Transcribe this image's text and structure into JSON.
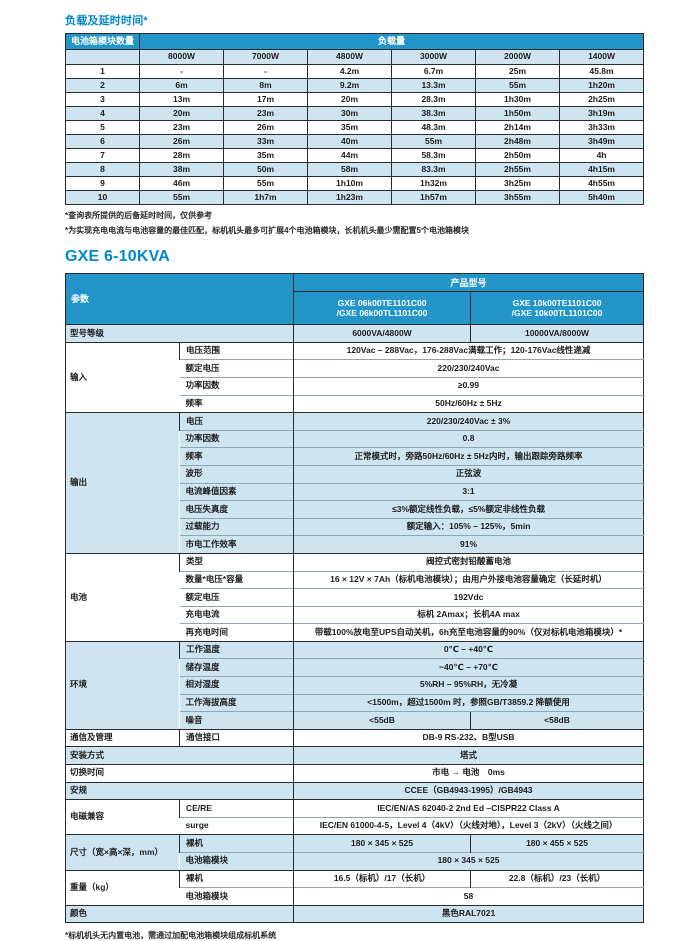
{
  "colors": {
    "header_blue": "#2395c9",
    "row_light_blue": "#cfe4f1",
    "title_blue": "#0087cb",
    "border_dark": "#2b2b2b"
  },
  "load_section": {
    "title": "负载及延时时间*",
    "table": {
      "corner_header": "电池箱模块数量",
      "span_header": "负载量",
      "columns": [
        "8000W",
        "7000W",
        "4800W",
        "3000W",
        "2000W",
        "1400W"
      ],
      "rows": [
        {
          "modules": "1",
          "values": [
            "-",
            "-",
            "4.2m",
            "6.7m",
            "25m",
            "45.8m"
          ]
        },
        {
          "modules": "2",
          "values": [
            "6m",
            "8m",
            "9.2m",
            "13.3m",
            "55m",
            "1h20m"
          ]
        },
        {
          "modules": "3",
          "values": [
            "13m",
            "17m",
            "20m",
            "28.3m",
            "1h30m",
            "2h25m"
          ]
        },
        {
          "modules": "4",
          "values": [
            "20m",
            "23m",
            "30m",
            "38.3m",
            "1h50m",
            "3h19m"
          ]
        },
        {
          "modules": "5",
          "values": [
            "23m",
            "26m",
            "35m",
            "48.3m",
            "2h14m",
            "3h33m"
          ]
        },
        {
          "modules": "6",
          "values": [
            "26m",
            "33m",
            "40m",
            "55m",
            "2h48m",
            "3h49m"
          ]
        },
        {
          "modules": "7",
          "values": [
            "28m",
            "35m",
            "44m",
            "58.3m",
            "2h50m",
            "4h"
          ]
        },
        {
          "modules": "8",
          "values": [
            "38m",
            "50m",
            "58m",
            "83.3m",
            "2h55m",
            "4h15m"
          ]
        },
        {
          "modules": "9",
          "values": [
            "46m",
            "55m",
            "1h10m",
            "1h32m",
            "3h25m",
            "4h55m"
          ]
        },
        {
          "modules": "10",
          "values": [
            "55m",
            "1h7m",
            "1h23m",
            "1h57m",
            "3h55m",
            "5h40m"
          ]
        }
      ]
    },
    "footnotes": [
      "*查询表所提供的后备延时时间，仅供参考",
      "*为实现充电电流与电池容量的最佳匹配，标机机头最多可扩展4个电池箱模块，长机机头最少需配置5个电池箱模块"
    ]
  },
  "spec_section": {
    "title": "GXE 6-10KVA",
    "header": {
      "param_label": "参数",
      "product_label": "产品型号",
      "model1": [
        "GXE 06k00TE1101C00",
        "/GXE 06k00TL1101C00"
      ],
      "model2": [
        "GXE 10k00TE1101C00",
        "/GXE 10k00TL1101C00"
      ]
    },
    "groups": [
      {
        "label": "型号等级",
        "shade": true,
        "rows": [
          {
            "param": null,
            "values": [
              "6000VA/4800W",
              "10000VA/8000W"
            ]
          }
        ]
      },
      {
        "label": "输入",
        "shade": false,
        "rows": [
          {
            "param": "电压范围",
            "values": [
              "120Vac – 288Vac，176-288Vac满载工作；120-176Vac线性递减"
            ]
          },
          {
            "param": "额定电压",
            "values": [
              "220/230/240Vac"
            ]
          },
          {
            "param": "功率因数",
            "values": [
              "≥0.99"
            ]
          },
          {
            "param": "频率",
            "values": [
              "50Hz/60Hz ± 5Hz"
            ]
          }
        ]
      },
      {
        "label": "输出",
        "shade": true,
        "rows": [
          {
            "param": "电压",
            "values": [
              "220/230/240Vac ± 3%"
            ]
          },
          {
            "param": "功率因数",
            "values": [
              "0.8"
            ]
          },
          {
            "param": "频率",
            "values": [
              "正常模式时，旁路50Hz/60Hz ± 5Hz内时，输出跟踪旁路频率"
            ]
          },
          {
            "param": "波形",
            "values": [
              "正弦波"
            ]
          },
          {
            "param": "电流峰值因素",
            "values": [
              "3:1"
            ]
          },
          {
            "param": "电压失真度",
            "values": [
              "≤3%额定线性负载，≤5%额定非线性负载"
            ]
          },
          {
            "param": "过载能力",
            "values": [
              "额定输入：105% – 125%，5min"
            ]
          },
          {
            "param": "市电工作效率",
            "values": [
              "91%"
            ]
          }
        ]
      },
      {
        "label": "电池",
        "shade": false,
        "rows": [
          {
            "param": "类型",
            "values": [
              "阀控式密封铅酸蓄电池"
            ]
          },
          {
            "param": "数量*电压*容量",
            "values": [
              "16 × 12V × 7Ah（标机电池模块）；由用户外接电池容量确定（长延时机）"
            ]
          },
          {
            "param": "额定电压",
            "values": [
              "192Vdc"
            ]
          },
          {
            "param": "充电电流",
            "values": [
              "标机 2Amax；长机4A max"
            ]
          },
          {
            "param": "再充电时间",
            "values": [
              "带载100%放电至UPS自动关机，6h充至电池容量的90%（仅对标机电池箱模块）*"
            ]
          }
        ]
      },
      {
        "label": "环境",
        "shade": true,
        "rows": [
          {
            "param": "工作温度",
            "values": [
              "0℃ – +40℃"
            ]
          },
          {
            "param": "储存温度",
            "values": [
              "−40℃ – +70℃"
            ]
          },
          {
            "param": "相对湿度",
            "values": [
              "5%RH – 95%RH，无冷凝"
            ]
          },
          {
            "param": "工作海拔高度",
            "values": [
              "<1500m，超过1500m 时，参照GB/T3859.2 降额使用"
            ]
          },
          {
            "param": "噪音",
            "values": [
              "<55dB",
              "<58dB"
            ]
          }
        ]
      },
      {
        "label": "通信及管理",
        "shade": false,
        "rows": [
          {
            "param": "通信接口",
            "values": [
              "DB-9 RS-232、B型USB"
            ]
          }
        ]
      },
      {
        "label": "安装方式",
        "shade": true,
        "rows": [
          {
            "param": null,
            "values": [
              "塔式"
            ]
          }
        ]
      },
      {
        "label": "切换时间",
        "shade": false,
        "rows": [
          {
            "param": null,
            "values": [
              "市电 → 电池　0ms"
            ]
          }
        ]
      },
      {
        "label": "安规",
        "shade": true,
        "rows": [
          {
            "param": null,
            "values": [
              "CCEE（GB4943-1995）/GB4943"
            ]
          }
        ]
      },
      {
        "label": "电磁兼容",
        "shade": false,
        "rows": [
          {
            "param": "CE/RE",
            "values": [
              "IEC/EN/AS 62040-2 2nd Ed –CISPR22 Class A"
            ]
          },
          {
            "param": "surge",
            "values": [
              "IEC/EN 61000-4-5，Level 4（4kV）（火线对地），Level 3（2kV）（火线之间）"
            ]
          }
        ]
      },
      {
        "label": "尺寸（宽×高×深，mm）",
        "shade": true,
        "rows": [
          {
            "param": "裸机",
            "values": [
              "180 × 345 × 525",
              "180 × 455 × 525"
            ]
          },
          {
            "param": "电池箱模块",
            "values": [
              "180 × 345 × 525"
            ]
          }
        ]
      },
      {
        "label": "重量（kg）",
        "shade": false,
        "rows": [
          {
            "param": "裸机",
            "values": [
              "16.5（标机）/17（长机）",
              "22.8（标机）/23（长机）"
            ]
          },
          {
            "param": "电池箱模块",
            "values": [
              "58"
            ]
          }
        ]
      },
      {
        "label": "颜色",
        "shade": true,
        "rows": [
          {
            "param": null,
            "values": [
              "黑色RAL7021"
            ]
          }
        ]
      }
    ],
    "footnote": "*标机机头无内置电池，需通过加配电池箱模块组成标机系统"
  }
}
